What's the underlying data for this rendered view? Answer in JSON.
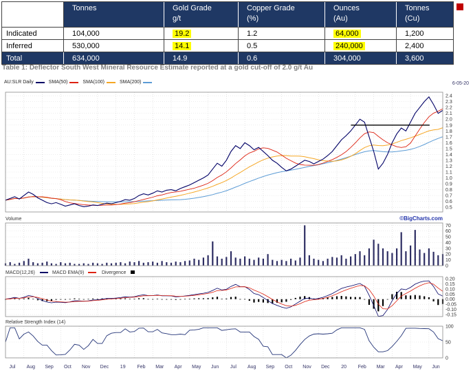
{
  "table": {
    "header_bg": "#1f3864",
    "highlight_color": "#ffff00",
    "columns": [
      {
        "line1": "",
        "line2": ""
      },
      {
        "line1": "Tonnes",
        "line2": ""
      },
      {
        "line1": "Gold Grade",
        "line2": "g/t"
      },
      {
        "line1": "Copper Grade",
        "line2": "(%)"
      },
      {
        "line1": "Ounces",
        "line2": "(Au)"
      },
      {
        "line1": "Tonnes",
        "line2": "(Cu)"
      }
    ],
    "rows": [
      {
        "label": "Indicated",
        "values": [
          "104,000",
          "19.2",
          "1.2",
          "64,000",
          "1,200"
        ]
      },
      {
        "label": "Inferred",
        "values": [
          "530,000",
          "14.1",
          "0.5",
          "240,000",
          "2,400"
        ]
      },
      {
        "label": "Total",
        "values": [
          "634,000",
          "14.9",
          "0.6",
          "304,000",
          "3,600"
        ]
      }
    ],
    "caption": "Table 1: Deflector South West Mineral Resource Estimate reported at a gold cut-off of 2.0 g/t Au"
  },
  "chart_data": {
    "type": "line",
    "symbol": "AU:SLR Daily",
    "date_label": "6-05-20",
    "watermark": "©BigCharts.com",
    "x_ticks": [
      "Jul",
      "Aug",
      "Sep",
      "Oct",
      "Nov",
      "Dec",
      "19",
      "Feb",
      "Mar",
      "Apr",
      "May",
      "Jun",
      "Jul",
      "Aug",
      "Sep",
      "Oct",
      "Nov",
      "Dec",
      "20",
      "Feb",
      "Mar",
      "Apr",
      "May",
      "Jun"
    ],
    "legend": [
      {
        "label": "AU:SLR Daily",
        "color": "#000066"
      },
      {
        "label": "SMA(50)",
        "color": "#dd2211"
      },
      {
        "label": "SMA(100)",
        "color": "#f5a623"
      },
      {
        "label": "SMA(200)",
        "color": "#5b9bd5"
      }
    ],
    "price_panel": {
      "ylim": [
        0.42,
        2.46
      ],
      "tick_labels": [
        "2.4",
        "2.3",
        "2.2",
        "2.1",
        "2.0",
        "1.9",
        "1.8",
        "1.7",
        "1.6",
        "1.5",
        "1.4",
        "1.3",
        "1.2",
        "1.1",
        "1.0",
        "0.9",
        "0.8",
        "0.7",
        "0.6",
        "0.5"
      ],
      "resistance": {
        "value": 1.9,
        "from": 0.79,
        "to": 0.97,
        "color": "#000000"
      },
      "series": [
        0.62,
        0.65,
        0.68,
        0.64,
        0.7,
        0.76,
        0.72,
        0.66,
        0.62,
        0.58,
        0.56,
        0.58,
        0.55,
        0.52,
        0.54,
        0.56,
        0.53,
        0.51,
        0.52,
        0.54,
        0.53,
        0.55,
        0.57,
        0.56,
        0.58,
        0.6,
        0.63,
        0.62,
        0.65,
        0.7,
        0.73,
        0.71,
        0.74,
        0.78,
        0.76,
        0.79,
        0.8,
        0.78,
        0.82,
        0.85,
        0.88,
        0.92,
        0.96,
        1.0,
        1.05,
        1.15,
        1.25,
        1.2,
        1.3,
        1.45,
        1.55,
        1.5,
        1.6,
        1.55,
        1.48,
        1.52,
        1.45,
        1.38,
        1.3,
        1.25,
        1.18,
        1.12,
        1.15,
        1.2,
        1.25,
        1.3,
        1.28,
        1.24,
        1.28,
        1.32,
        1.38,
        1.45,
        1.55,
        1.65,
        1.72,
        1.8,
        1.9,
        2.0,
        1.95,
        1.7,
        1.45,
        1.15,
        1.25,
        1.4,
        1.6,
        1.75,
        1.85,
        1.8,
        1.95,
        2.1,
        2.2,
        2.3,
        2.38,
        2.25,
        2.1,
        2.15
      ]
    },
    "volume_panel": {
      "label": "Volume",
      "bar_color": "#2e2e63",
      "ylim": [
        0,
        74
      ],
      "tick_labels": [
        "70",
        "60",
        "50",
        "40",
        "30",
        "20",
        "10",
        "0"
      ],
      "values": [
        4,
        6,
        3,
        5,
        8,
        12,
        6,
        4,
        5,
        7,
        4,
        3,
        6,
        4,
        5,
        3,
        3,
        4,
        3,
        5,
        4,
        3,
        5,
        4,
        5,
        6,
        4,
        7,
        6,
        8,
        5,
        6,
        7,
        5,
        8,
        6,
        5,
        7,
        6,
        8,
        9,
        12,
        10,
        14,
        18,
        42,
        16,
        12,
        15,
        25,
        14,
        12,
        16,
        12,
        10,
        14,
        12,
        20,
        10,
        8,
        10,
        8,
        12,
        9,
        14,
        70,
        18,
        12,
        10,
        8,
        12,
        15,
        14,
        18,
        12,
        16,
        20,
        25,
        18,
        30,
        45,
        38,
        30,
        25,
        22,
        30,
        58,
        25,
        35,
        62,
        28,
        22,
        30,
        24,
        18,
        20
      ]
    },
    "macd_panel": {
      "legend": [
        {
          "label": "MACD(12,26)",
          "color": "#000066"
        },
        {
          "label": "MACD EMA(9)",
          "color": "#dd2211"
        },
        {
          "label": "Divergence",
          "color": "#000000"
        }
      ],
      "ylim": [
        -0.17,
        0.22
      ],
      "tick_labels": [
        "0.20",
        "0.15",
        "0.10",
        "0.05",
        "0.00",
        "-0.05",
        "-0.10",
        "-0.15"
      ]
    },
    "rsi_panel": {
      "label": "Relative Strength Index (14)",
      "ylim": [
        0,
        100
      ],
      "tick_labels": [
        "100",
        "50",
        "0"
      ]
    }
  }
}
